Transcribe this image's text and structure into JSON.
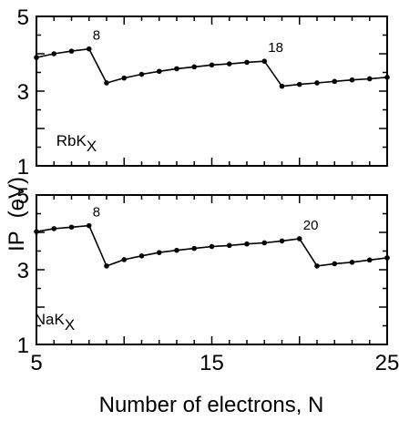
{
  "chart_data": [
    {
      "type": "line",
      "panel_label": "RbK",
      "panel_label_sub": "X",
      "x": [
        5,
        6,
        7,
        8,
        9,
        10,
        11,
        12,
        13,
        14,
        15,
        16,
        17,
        18,
        19,
        20,
        21,
        22,
        23,
        24,
        25
      ],
      "series": [
        {
          "values": [
            3.9,
            4.0,
            4.07,
            4.13,
            3.22,
            3.35,
            3.45,
            3.53,
            3.6,
            3.65,
            3.7,
            3.73,
            3.77,
            3.8,
            3.13,
            3.18,
            3.22,
            3.26,
            3.3,
            3.33,
            3.37
          ]
        }
      ],
      "annotations": [
        {
          "x": 8,
          "text": "8"
        },
        {
          "x": 18,
          "text": "18"
        }
      ],
      "xlim": [
        5,
        25
      ],
      "ylim": [
        1,
        5
      ],
      "yticks": [
        "1",
        "3",
        "5"
      ],
      "grid": false
    },
    {
      "type": "line",
      "panel_label": "NaK",
      "panel_label_sub": "X",
      "x": [
        5,
        6,
        7,
        8,
        9,
        10,
        11,
        12,
        13,
        14,
        15,
        16,
        17,
        18,
        19,
        20,
        21,
        22,
        23,
        24,
        25
      ],
      "series": [
        {
          "values": [
            4.02,
            4.1,
            4.14,
            4.18,
            3.1,
            3.27,
            3.37,
            3.46,
            3.52,
            3.57,
            3.62,
            3.65,
            3.69,
            3.72,
            3.77,
            3.83,
            3.1,
            3.16,
            3.2,
            3.26,
            3.32
          ]
        }
      ],
      "annotations": [
        {
          "x": 8,
          "text": "8"
        },
        {
          "x": 20,
          "text": "20"
        }
      ],
      "xlim": [
        5,
        25
      ],
      "ylim": [
        1,
        5
      ],
      "yticks": [
        "1",
        "3",
        "5"
      ],
      "xticks": [
        "5",
        "15",
        "25"
      ],
      "grid": false
    }
  ],
  "xlabel": "Number of electrons, N",
  "ylabel_main": "IP",
  "ylabel_unit": "(eV)"
}
